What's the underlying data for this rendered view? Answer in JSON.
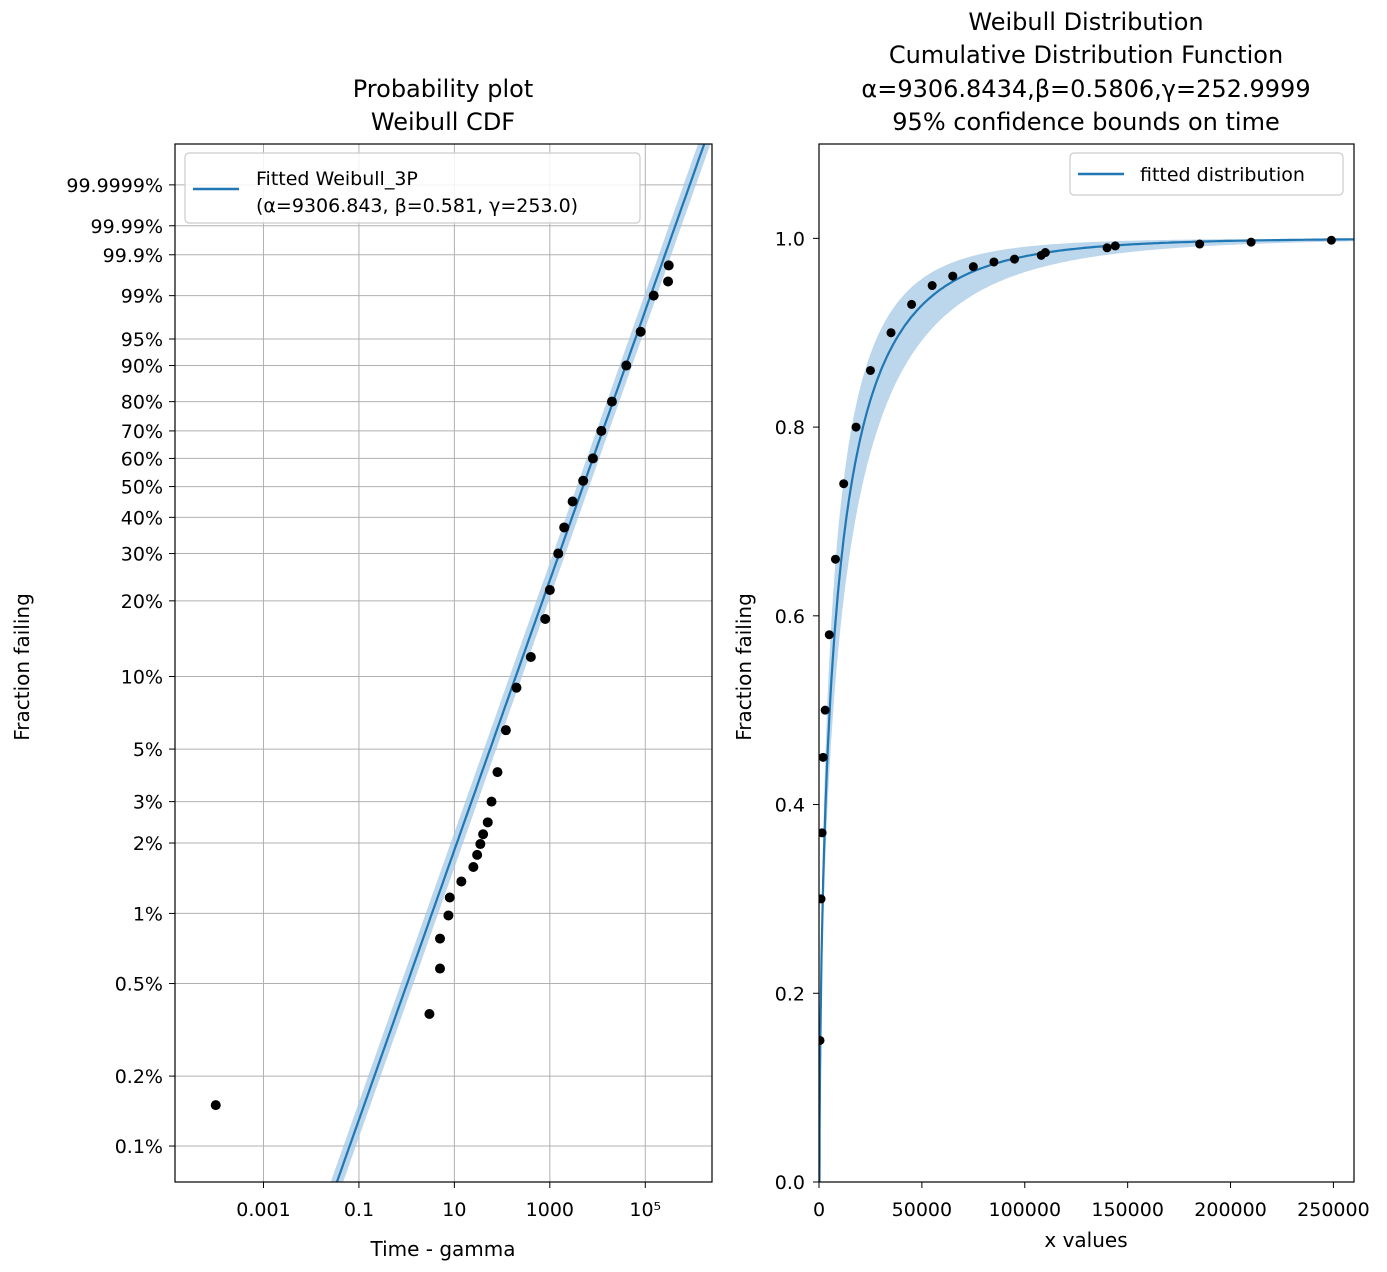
{
  "colors": {
    "fit_line": "#1f77b4",
    "ci_band": "#a6c8e6",
    "points": "#000000",
    "grid": "#b0b0b0"
  },
  "chart_data": [
    {
      "type": "scatter",
      "title_lines": [
        "Probability plot",
        "Weibull CDF"
      ],
      "xlabel": "Time - gamma",
      "ylabel": "Fraction failing",
      "xscale": "log",
      "yscale": "weibull",
      "xlim": [
        1.4e-05,
        2500000
      ],
      "ylim": [
        0.0007,
        0.999999999
      ],
      "grid": true,
      "legend_placement": "top-left",
      "x_ticks": [
        {
          "v": 0.001,
          "label": "0.001"
        },
        {
          "v": 0.1,
          "label": "0.1"
        },
        {
          "v": 10,
          "label": "10"
        },
        {
          "v": 1000,
          "label": "1000"
        },
        {
          "v": 100000,
          "label": "10⁵"
        }
      ],
      "y_ticks": [
        {
          "v": 0.001,
          "label": "0.1%"
        },
        {
          "v": 0.002,
          "label": "0.2%"
        },
        {
          "v": 0.005,
          "label": "0.5%"
        },
        {
          "v": 0.01,
          "label": "1%"
        },
        {
          "v": 0.02,
          "label": "2%"
        },
        {
          "v": 0.03,
          "label": "3%"
        },
        {
          "v": 0.05,
          "label": "5%"
        },
        {
          "v": 0.1,
          "label": "10%"
        },
        {
          "v": 0.2,
          "label": "20%"
        },
        {
          "v": 0.3,
          "label": "30%"
        },
        {
          "v": 0.4,
          "label": "40%"
        },
        {
          "v": 0.5,
          "label": "50%"
        },
        {
          "v": 0.6,
          "label": "60%"
        },
        {
          "v": 0.7,
          "label": "70%"
        },
        {
          "v": 0.8,
          "label": "80%"
        },
        {
          "v": 0.9,
          "label": "90%"
        },
        {
          "v": 0.95,
          "label": "95%"
        },
        {
          "v": 0.99,
          "label": "99%"
        },
        {
          "v": 0.999,
          "label": "99.9%"
        },
        {
          "v": 0.9999,
          "label": "99.99%"
        },
        {
          "v": 0.999999,
          "label": "99.9999%"
        }
      ],
      "series": [
        {
          "name": "Fitted Weibull_3P",
          "legend_line2": "(α=9306.843, β=0.581, γ=253.0)",
          "kind": "line",
          "alpha": 9306.843,
          "beta": 0.581,
          "x_range": [
            0.01,
            2500000
          ],
          "ci_factor": 1.35
        },
        {
          "kind": "points",
          "x": [
            0.0001,
            3,
            5,
            5,
            7.5,
            8,
            14,
            25,
            30,
            35,
            40,
            50,
            60,
            80,
            120,
            200,
            400,
            800,
            1000,
            1500,
            2000,
            3000,
            5000,
            8000,
            12000,
            20000,
            40000,
            80000,
            150000,
            300000,
            310000
          ],
          "y": [
            0.0015,
            0.0037,
            0.0058,
            0.0078,
            0.0098,
            0.0117,
            0.0137,
            0.0158,
            0.0178,
            0.0198,
            0.0218,
            0.0245,
            0.03,
            0.04,
            0.06,
            0.09,
            0.12,
            0.17,
            0.22,
            0.3,
            0.37,
            0.45,
            0.52,
            0.6,
            0.7,
            0.8,
            0.9,
            0.96,
            0.99,
            0.995,
            0.998
          ]
        }
      ]
    },
    {
      "type": "line",
      "title_lines": [
        "Weibull Distribution",
        "Cumulative Distribution Function",
        "α=9306.8434,β=0.5806,γ=252.9999",
        "95% confidence bounds on time"
      ],
      "xlabel": "x values",
      "ylabel": "Fraction failing",
      "xlim": [
        0,
        260000
      ],
      "ylim": [
        0,
        1.1
      ],
      "grid": false,
      "legend_placement": "top-right",
      "x_ticks": [
        {
          "v": 0,
          "label": "0"
        },
        {
          "v": 50000,
          "label": "50000"
        },
        {
          "v": 100000,
          "label": "100000"
        },
        {
          "v": 150000,
          "label": "150000"
        },
        {
          "v": 200000,
          "label": "200000"
        },
        {
          "v": 250000,
          "label": "250000"
        }
      ],
      "y_ticks": [
        {
          "v": 0.0,
          "label": "0.0"
        },
        {
          "v": 0.2,
          "label": "0.2"
        },
        {
          "v": 0.4,
          "label": "0.4"
        },
        {
          "v": 0.6,
          "label": "0.6"
        },
        {
          "v": 0.8,
          "label": "0.8"
        },
        {
          "v": 1.0,
          "label": "1.0"
        }
      ],
      "series": [
        {
          "name": "fitted distribution",
          "kind": "line",
          "alpha": 9306.8434,
          "beta": 0.5806,
          "gamma": 252.9999,
          "x_range": [
            253,
            260000
          ],
          "ci_factor": 1.35
        },
        {
          "kind": "points",
          "x": [
            500,
            1000,
            1500,
            2000,
            3000,
            5000,
            8000,
            12000,
            18000,
            25000,
            35000,
            45000,
            55000,
            65000,
            75000,
            85000,
            95000,
            108000,
            110000,
            140000,
            144000,
            185000,
            210000,
            249000
          ],
          "y": [
            0.15,
            0.3,
            0.37,
            0.45,
            0.5,
            0.58,
            0.66,
            0.74,
            0.8,
            0.86,
            0.9,
            0.93,
            0.95,
            0.96,
            0.97,
            0.975,
            0.978,
            0.982,
            0.985,
            0.99,
            0.992,
            0.994,
            0.996,
            0.998
          ]
        }
      ]
    }
  ]
}
